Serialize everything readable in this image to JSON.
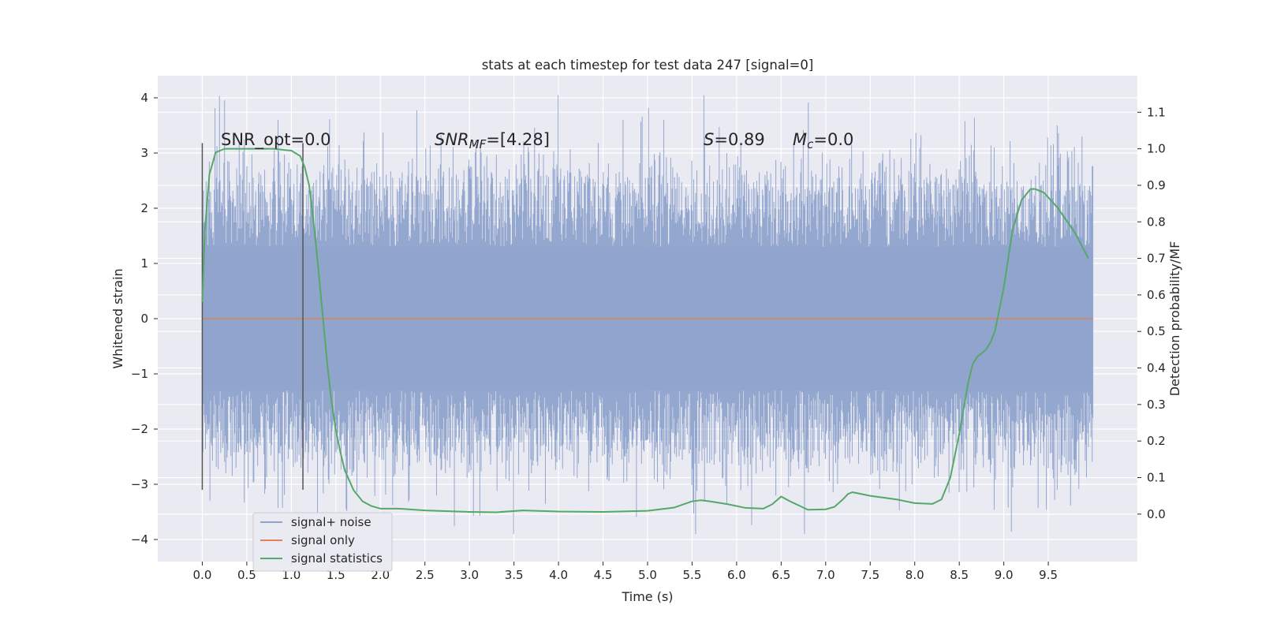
{
  "chart_data": {
    "type": "line",
    "title": "stats at each timestep for test data 247 [signal=0]",
    "xlabel": "Time (s)",
    "ylabel": "Whitened strain",
    "y2label": "Detection probability/MF",
    "xlim": [
      -0.5,
      10.5
    ],
    "ylim": [
      -4.4,
      4.4
    ],
    "y2lim": [
      -0.13,
      1.2
    ],
    "xticks": [
      "0.0",
      "0.5",
      "1.0",
      "1.5",
      "2.0",
      "2.5",
      "3.0",
      "3.5",
      "4.0",
      "4.5",
      "5.0",
      "5.5",
      "6.0",
      "6.5",
      "7.0",
      "7.5",
      "8.0",
      "8.5",
      "9.0",
      "9.5"
    ],
    "yticks": [
      "4",
      "3",
      "2",
      "1",
      "0",
      "−1",
      "−2",
      "−3",
      "−4"
    ],
    "y2ticks": [
      "1.1",
      "1.0",
      "0.9",
      "0.8",
      "0.7",
      "0.6",
      "0.5",
      "0.4",
      "0.3",
      "0.2",
      "0.1",
      "0.0"
    ],
    "grid": true,
    "legend_position": "lower-left",
    "annotations": {
      "snr_opt_label": "SNR_opt=0.0",
      "snr_mf_base": "SNR",
      "snr_mf_sub": "MF",
      "snr_mf_value": "=[4.28]",
      "s_label": "S",
      "s_value": "=0.89",
      "mc_base": "M",
      "mc_sub": "c",
      "mc_value": "=0.0"
    },
    "vertical_markers": [
      0.0,
      1.13
    ],
    "series": [
      {
        "name": "signal+ noise",
        "color": "#8fa3cc",
        "kind": "noise",
        "x_range": [
          0.0,
          10.0
        ],
        "core_range": [
          -1.3,
          1.3
        ],
        "spike_range": [
          -3.9,
          4.05
        ]
      },
      {
        "name": "signal only",
        "color": "#dd8452",
        "kind": "line",
        "x": [
          0.0,
          10.0
        ],
        "values": [
          0.0,
          0.0
        ]
      },
      {
        "name": "signal statistics",
        "color": "#55a868",
        "axis": "right",
        "kind": "line",
        "x": [
          0.0,
          0.03,
          0.08,
          0.15,
          0.25,
          0.4,
          0.6,
          0.8,
          1.0,
          1.1,
          1.15,
          1.2,
          1.25,
          1.3,
          1.35,
          1.4,
          1.45,
          1.5,
          1.55,
          1.6,
          1.7,
          1.8,
          1.9,
          2.0,
          2.2,
          2.5,
          3.0,
          3.3,
          3.6,
          4.0,
          4.5,
          5.0,
          5.3,
          5.5,
          5.6,
          5.7,
          5.9,
          6.1,
          6.3,
          6.4,
          6.5,
          6.6,
          6.8,
          7.0,
          7.1,
          7.2,
          7.25,
          7.3,
          7.5,
          7.8,
          8.0,
          8.2,
          8.3,
          8.4,
          8.5,
          8.6,
          8.65,
          8.7,
          8.75,
          8.8,
          8.85,
          8.9,
          9.0,
          9.1,
          9.2,
          9.3,
          9.35,
          9.45,
          9.6,
          9.8,
          9.95
        ],
        "values": [
          0.58,
          0.78,
          0.93,
          0.99,
          1.0,
          1.0,
          1.0,
          1.0,
          0.995,
          0.98,
          0.95,
          0.9,
          0.8,
          0.68,
          0.55,
          0.42,
          0.31,
          0.23,
          0.17,
          0.12,
          0.065,
          0.035,
          0.022,
          0.015,
          0.015,
          0.01,
          0.006,
          0.005,
          0.01,
          0.007,
          0.006,
          0.009,
          0.018,
          0.035,
          0.038,
          0.035,
          0.027,
          0.017,
          0.015,
          0.027,
          0.048,
          0.035,
          0.012,
          0.013,
          0.02,
          0.042,
          0.055,
          0.06,
          0.05,
          0.04,
          0.03,
          0.028,
          0.04,
          0.1,
          0.22,
          0.36,
          0.41,
          0.43,
          0.44,
          0.45,
          0.47,
          0.5,
          0.62,
          0.78,
          0.86,
          0.89,
          0.89,
          0.88,
          0.84,
          0.77,
          0.7
        ]
      }
    ]
  }
}
